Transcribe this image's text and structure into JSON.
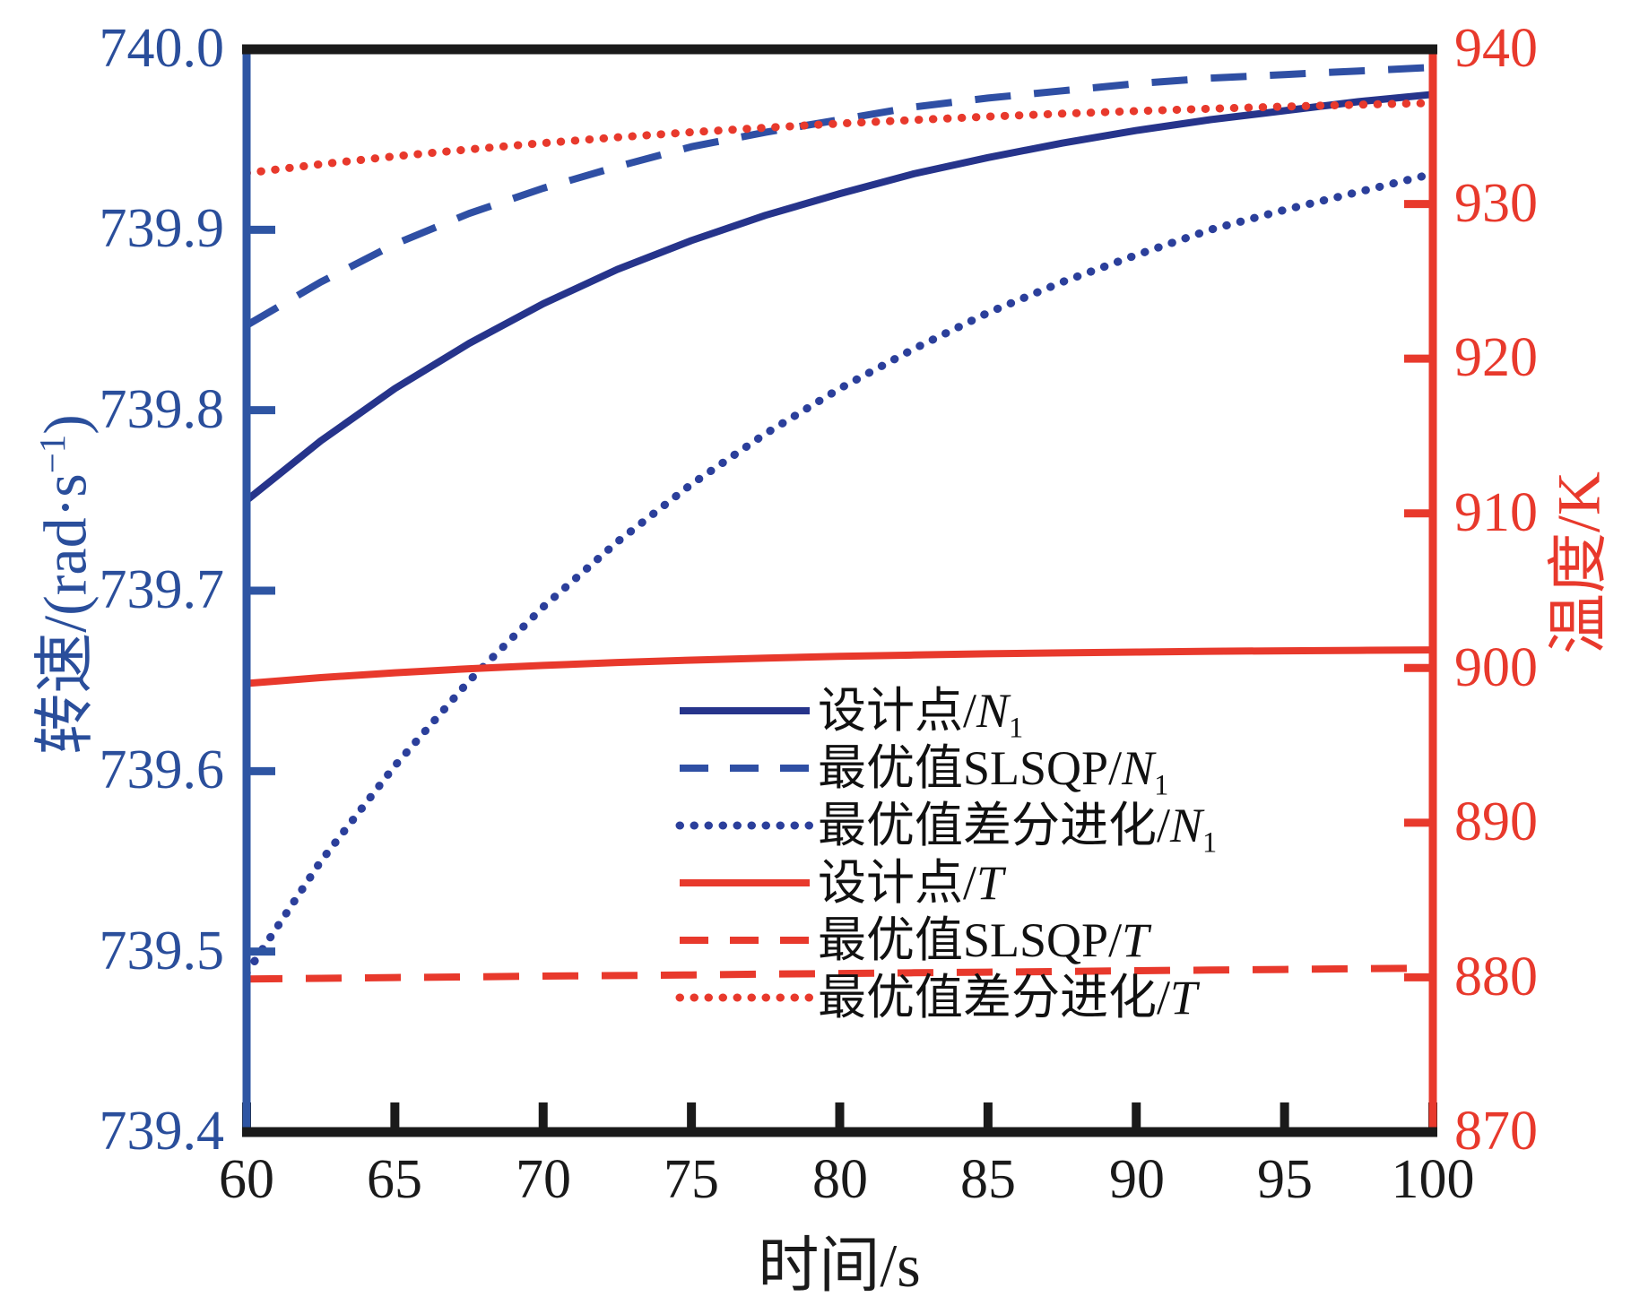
{
  "figure": {
    "background": "#ffffff",
    "spine_top_bottom_color": "#1a1a1a",
    "axis_left_color": "#2E55A3",
    "axis_right_color": "#E8392C"
  },
  "chart_data": {
    "type": "line",
    "title": "",
    "xlabel": "时间/s",
    "ylabel_left_parts": {
      "prefix": "转速/(rad·s",
      "sup": "−1",
      "suffix": ")"
    },
    "ylabel_right": "温度/K",
    "x_range": [
      60,
      100
    ],
    "y_left_range": [
      739.4,
      740.0
    ],
    "y_right_range": [
      870,
      940
    ],
    "x_ticks": [
      "60",
      "65",
      "70",
      "75",
      "80",
      "85",
      "90",
      "95",
      "100"
    ],
    "y_left_ticks": [
      "740.0",
      "739.9",
      "739.8",
      "739.7",
      "739.6",
      "739.5",
      "739.4"
    ],
    "y_right_ticks": [
      "940",
      "930",
      "920",
      "910",
      "900",
      "890",
      "880",
      "870"
    ],
    "grid": false,
    "legend_position": "inside lower-center, no frame",
    "x": [
      60,
      62.5,
      65,
      67.5,
      70,
      72.5,
      75,
      77.5,
      80,
      82.5,
      85,
      87.5,
      90,
      92.5,
      95,
      97.5,
      100
    ],
    "series": [
      {
        "name": "设计点/N1",
        "axis": "left",
        "style": "solid",
        "color": "#26348B",
        "width": 8,
        "values": [
          739.75,
          739.783,
          739.812,
          739.837,
          739.859,
          739.878,
          739.894,
          739.908,
          739.92,
          739.931,
          739.94,
          739.948,
          739.955,
          739.961,
          739.966,
          739.971,
          739.975
        ]
      },
      {
        "name": "最优值SLSQP/N1",
        "axis": "left",
        "style": "dashed",
        "color": "#2F4FA4",
        "width": 8,
        "values": [
          739.847,
          739.871,
          739.892,
          739.909,
          739.923,
          739.935,
          739.946,
          739.954,
          739.961,
          739.968,
          739.973,
          739.977,
          739.981,
          739.984,
          739.986,
          739.988,
          739.99
        ]
      },
      {
        "name": "最优值差分进化/N1",
        "axis": "left",
        "style": "dotted",
        "color": "#2B3F9B",
        "width": 9,
        "values": [
          739.488,
          739.55,
          739.603,
          739.65,
          739.691,
          739.727,
          739.759,
          739.787,
          739.812,
          739.834,
          739.854,
          739.871,
          739.886,
          739.9,
          739.911,
          739.921,
          739.931
        ]
      },
      {
        "name": "设计点/T",
        "axis": "right",
        "style": "solid",
        "color": "#E8392C",
        "width": 8,
        "values": [
          899.0,
          899.38,
          899.69,
          899.95,
          900.17,
          900.36,
          900.51,
          900.64,
          900.75,
          900.84,
          900.92,
          900.98,
          901.03,
          901.08,
          901.11,
          901.14,
          901.17
        ]
      },
      {
        "name": "最优值SLSQP/T",
        "axis": "right",
        "style": "dashed",
        "color": "#E8392C",
        "width": 8,
        "values": [
          879.9,
          879.94,
          879.99,
          880.03,
          880.08,
          880.12,
          880.16,
          880.21,
          880.25,
          880.3,
          880.34,
          880.38,
          880.43,
          880.47,
          880.51,
          880.56,
          880.6
        ]
      },
      {
        "name": "最优值差分进化/T",
        "axis": "right",
        "style": "dotted",
        "color": "#E8392C",
        "width": 9,
        "values": [
          932.0,
          932.57,
          933.08,
          933.53,
          933.94,
          934.31,
          934.64,
          934.93,
          935.2,
          935.43,
          935.65,
          935.84,
          936.01,
          936.16,
          936.3,
          936.42,
          936.53
        ]
      }
    ],
    "legend_entries": [
      {
        "prefix": "设计点/",
        "var": "N",
        "sub": "1"
      },
      {
        "prefix": "最优值SLSQP/",
        "var": "N",
        "sub": "1"
      },
      {
        "prefix": "最优值差分进化/",
        "var": "N",
        "sub": "1"
      },
      {
        "prefix": "设计点/",
        "var": "T",
        "sub": ""
      },
      {
        "prefix": "最优值SLSQP/",
        "var": "T",
        "sub": ""
      },
      {
        "prefix": "最优值差分进化/",
        "var": "T",
        "sub": ""
      }
    ]
  }
}
